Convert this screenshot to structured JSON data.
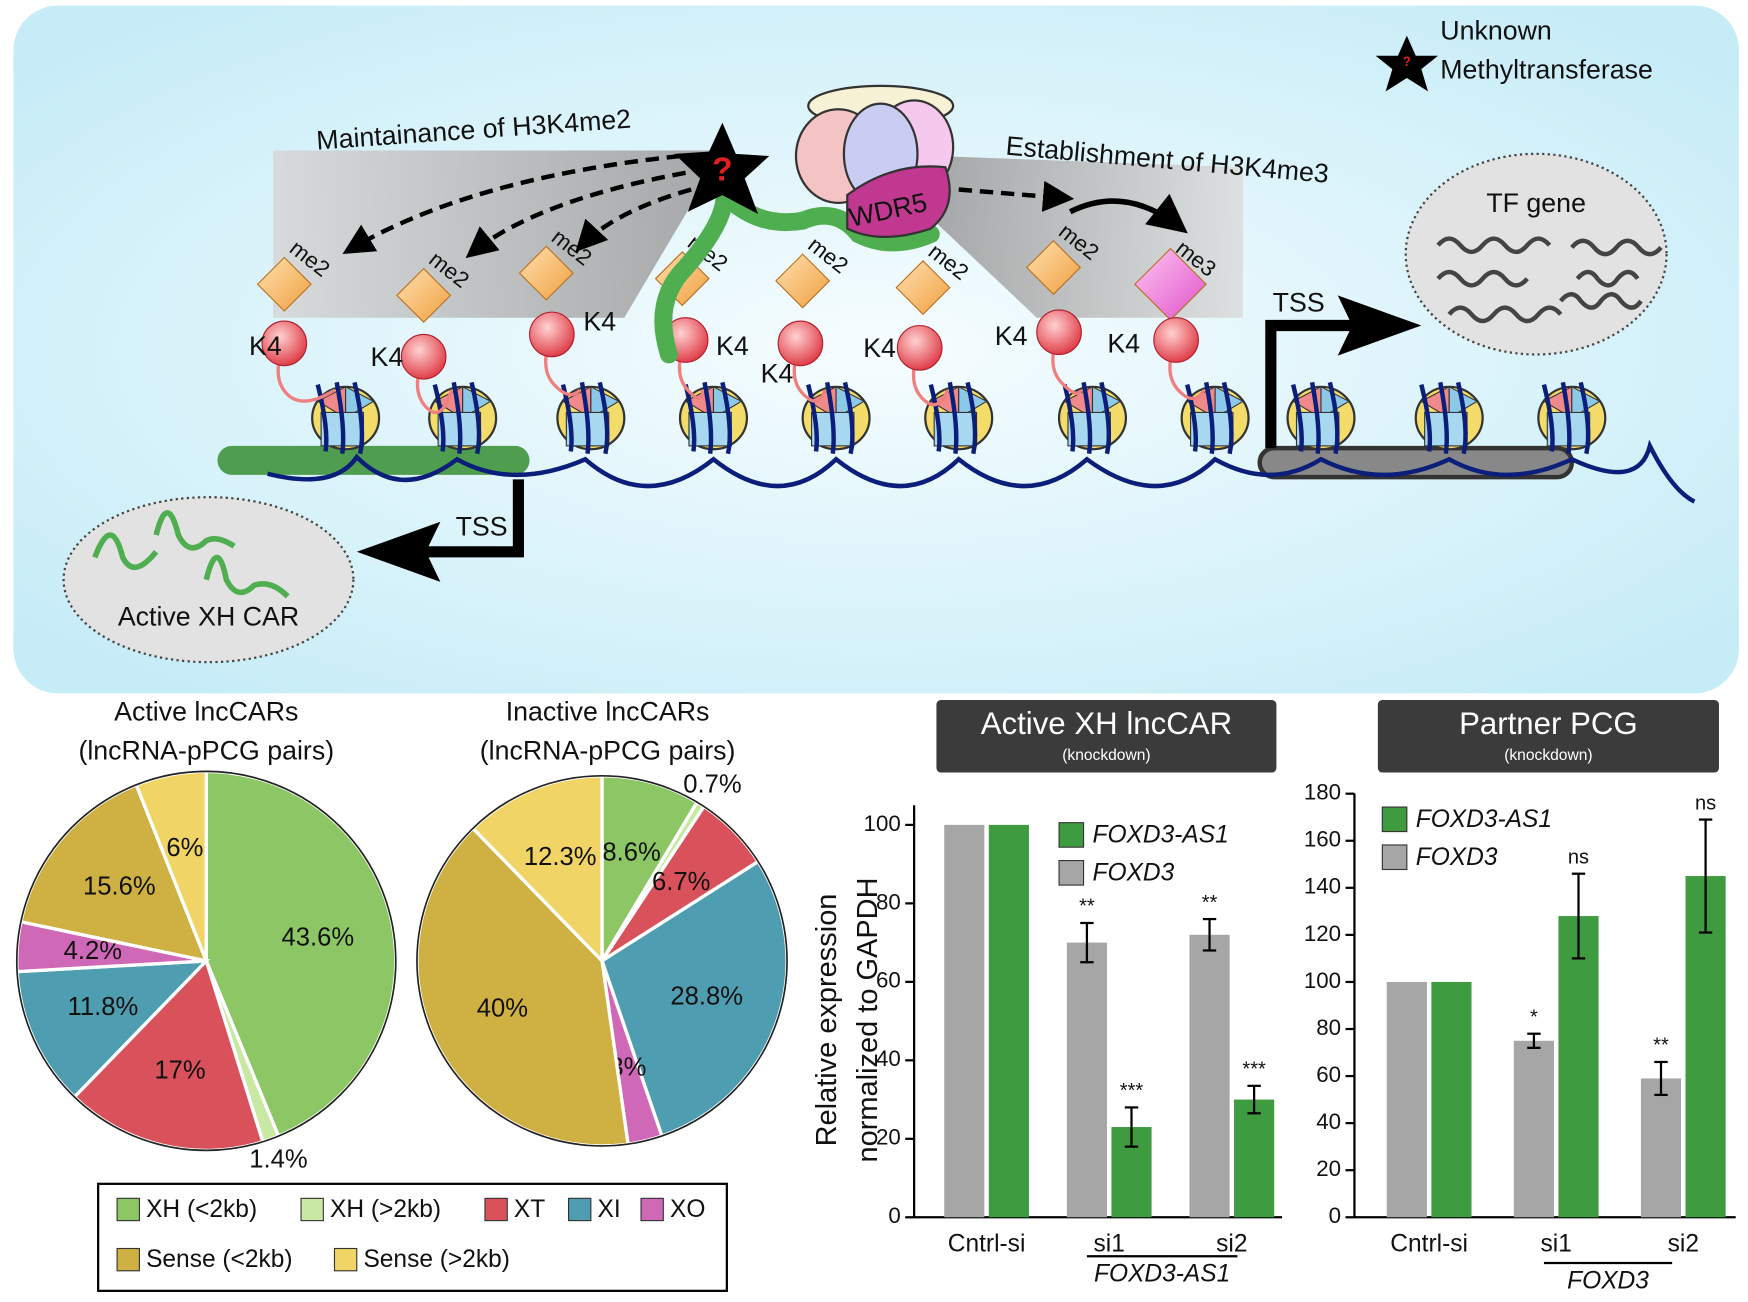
{
  "chart_data": [
    {
      "type": "pie",
      "title": "Active lncCARs",
      "subtitle": "(lncRNA-pPCG pairs)",
      "categories": [
        "XH (<2kb)",
        "XH (>2kb)",
        "XT",
        "XI",
        "XO",
        "Sense (<2kb)",
        "Sense (>2kb)"
      ],
      "values": [
        43.6,
        1.4,
        17,
        11.8,
        4.2,
        15.6,
        6
      ],
      "value_labels": [
        "43.6%",
        "1.4%",
        "17%",
        "11.8%",
        "4.2%",
        "15.6%",
        "6%"
      ],
      "colors": [
        "#8cc665",
        "#c9e8a4",
        "#d9515b",
        "#4f9db0",
        "#d068b8",
        "#cfb043",
        "#f1d466"
      ]
    },
    {
      "type": "pie",
      "title": "Inactive lncCARs",
      "subtitle": "(lncRNA-pPCG pairs)",
      "categories": [
        "XH (<2kb)",
        "XH (>2kb)",
        "XT",
        "XI",
        "XO",
        "Sense (<2kb)",
        "Sense (>2kb)"
      ],
      "values": [
        8.6,
        0.7,
        6.7,
        28.8,
        3,
        40,
        12.3
      ],
      "value_labels": [
        "8.6%",
        "0.7%",
        "6.7%",
        "28.8%",
        "3%",
        "40%",
        "12.3%"
      ],
      "colors": [
        "#8cc665",
        "#c9e8a4",
        "#d9515b",
        "#4f9db0",
        "#d068b8",
        "#cfb043",
        "#f1d466"
      ]
    },
    {
      "type": "bar",
      "title": "Active XH lncCAR",
      "subtitle": "(knockdown)",
      "ylabel": [
        "Relative expression",
        "normalized to GAPDH"
      ],
      "categories": [
        "Cntrl-si",
        "si1",
        "si2"
      ],
      "group_label": "FOXD3-AS1",
      "ylim": [
        0,
        105
      ],
      "yticks": [
        0,
        20,
        40,
        60,
        80,
        100
      ],
      "series": [
        {
          "name": "FOXD3-AS1",
          "color": "#3f9b3f",
          "values": [
            100,
            23,
            30
          ],
          "errors": [
            0,
            5,
            3.5
          ],
          "annotations": [
            null,
            "***",
            "***"
          ]
        },
        {
          "name": "FOXD3",
          "color": "#a6a6a6",
          "values": [
            100,
            70,
            72
          ],
          "errors": [
            0,
            5,
            4
          ],
          "annotations": [
            null,
            "**",
            "**"
          ]
        }
      ]
    },
    {
      "type": "bar",
      "title": "Partner PCG",
      "subtitle": "(knockdown)",
      "categories": [
        "Cntrl-si",
        "si1",
        "si2"
      ],
      "group_label": "FOXD3",
      "ylim": [
        0,
        180
      ],
      "yticks": [
        0,
        20,
        40,
        60,
        80,
        100,
        120,
        140,
        160,
        180
      ],
      "series": [
        {
          "name": "FOXD3-AS1",
          "color": "#3f9b3f",
          "values": [
            100,
            128,
            145
          ],
          "errors": [
            0,
            18,
            24
          ],
          "annotations": [
            null,
            "ns",
            "ns"
          ]
        },
        {
          "name": "FOXD3",
          "color": "#a6a6a6",
          "values": [
            100,
            75,
            59
          ],
          "errors": [
            0,
            3,
            7
          ],
          "annotations": [
            null,
            "*",
            "**"
          ]
        }
      ]
    }
  ],
  "diagram": {
    "legend_lines": [
      "Unknown",
      "Methyltransferase"
    ],
    "question": "?",
    "maintenance": "Maintainance of H3K4me2",
    "establishment": "Establishment of H3K4me3",
    "complex": "WDR5",
    "tss_labels": [
      "TSS",
      "TSS"
    ],
    "target": "TF gene",
    "source": "Active XH CAR",
    "nucleosomes": [
      {
        "residue": "K4",
        "mark": "me2"
      },
      {
        "residue": "K4",
        "mark": "me2"
      },
      {
        "residue": "K4",
        "mark": "me2"
      },
      {
        "residue": "K4",
        "mark": "me2"
      },
      {
        "residue": "K4",
        "mark": "me2"
      },
      {
        "residue": "K4",
        "mark": "me2"
      },
      {
        "residue": "K4",
        "mark": "me2"
      },
      {
        "residue": "K4",
        "mark": "me3"
      }
    ]
  }
}
